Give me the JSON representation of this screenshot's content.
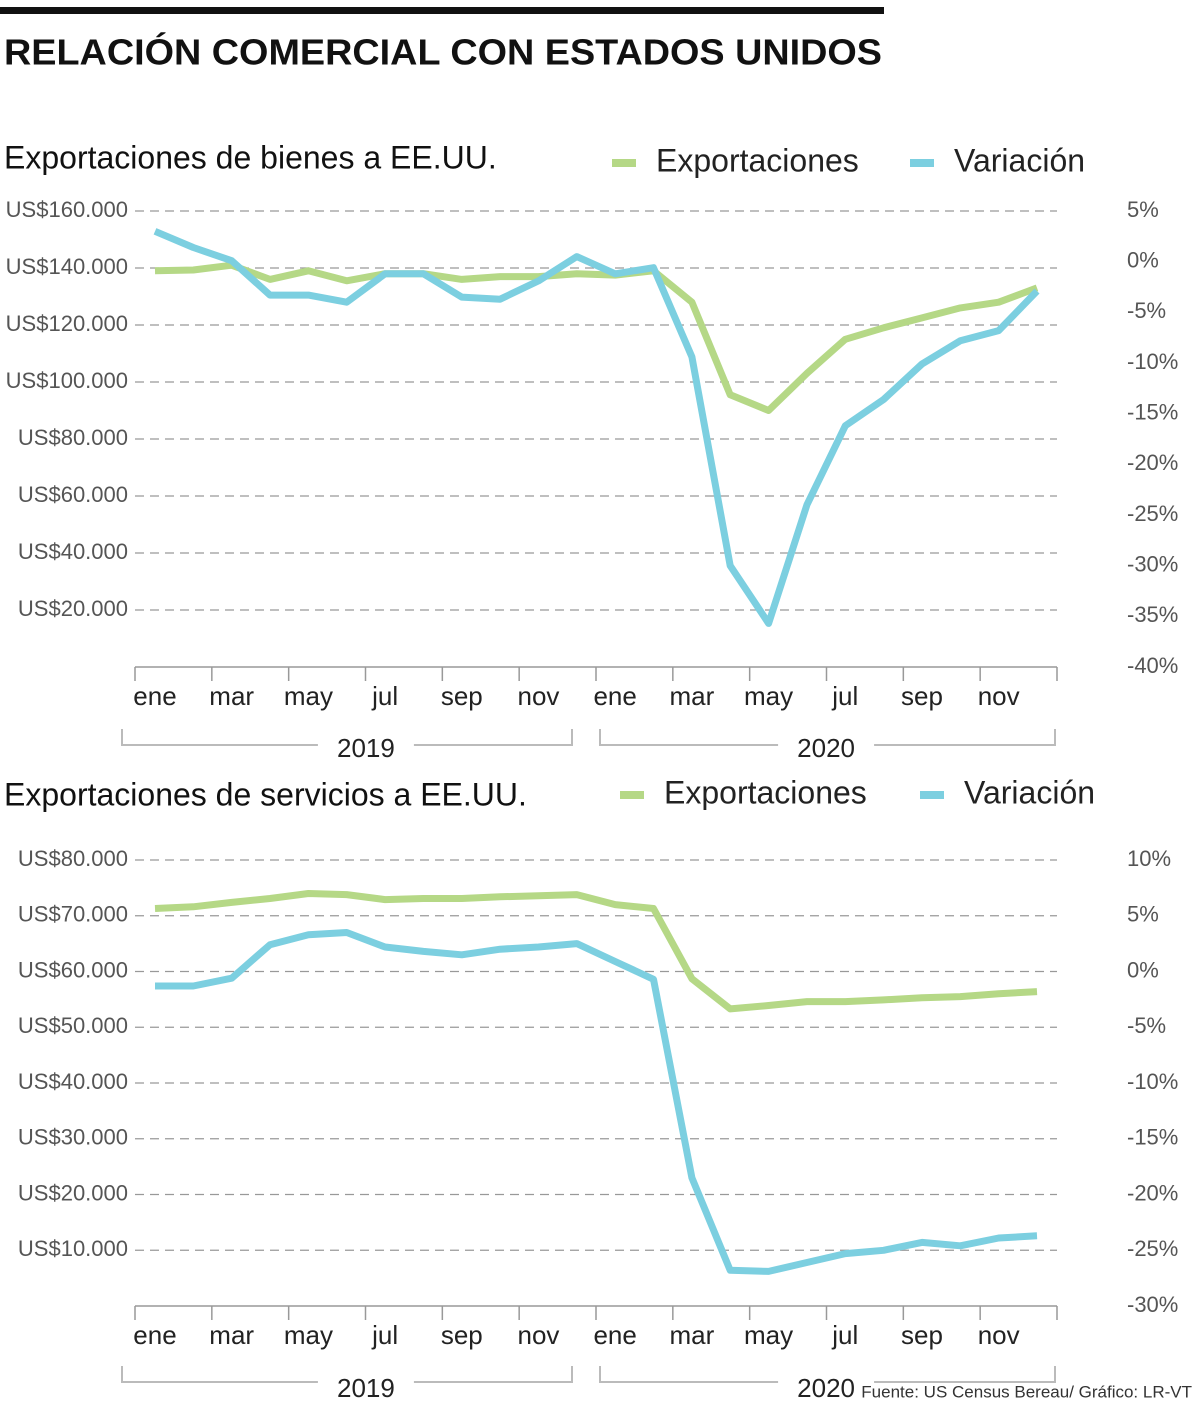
{
  "title": "RELACIÓN COMERCIAL CON ESTADOS UNIDOS",
  "source": "Fuente: US Census Bereau/ Gráfico: LR-VT",
  "chart_data": [
    {
      "type": "line",
      "title": "Exportaciones de bienes a EE.UU.",
      "categories": [
        "ene",
        null,
        "mar",
        null,
        "may",
        null,
        "jul",
        null,
        "sep",
        null,
        "nov",
        null,
        "ene",
        null,
        "mar",
        null,
        "may",
        null,
        "jul",
        null,
        "sep",
        null,
        "nov",
        null
      ],
      "groups": [
        "2019",
        "2020"
      ],
      "series": [
        {
          "name": "Exportaciones",
          "color": "#b5d886",
          "values": [
            139000,
            139300,
            141000,
            136000,
            139000,
            135500,
            138000,
            138000,
            136000,
            137000,
            137000,
            138000,
            137500,
            139000,
            128000,
            95500,
            90000,
            103000,
            115000,
            119000,
            122500,
            126000,
            128000,
            133000
          ]
        },
        {
          "name": "Variación",
          "color": "#7ccfe0",
          "axis": "y2",
          "values": [
            3.0,
            1.4,
            0.1,
            -3.3,
            -3.3,
            -4.0,
            -1.2,
            -1.2,
            -3.5,
            -3.7,
            -1.9,
            0.5,
            -1.2,
            -0.6,
            -9.4,
            -30.0,
            -35.7,
            -24.0,
            -16.2,
            -13.6,
            -10.1,
            -7.8,
            -6.8,
            -2.9
          ]
        }
      ],
      "ylim": [
        0,
        160000
      ],
      "yticks": [
        {
          "value": 20000,
          "label": "US$20.000"
        },
        {
          "value": 40000,
          "label": "US$40.000"
        },
        {
          "value": 60000,
          "label": "US$60.000"
        },
        {
          "value": 80000,
          "label": "US$80.000"
        },
        {
          "value": 100000,
          "label": "US$100.000"
        },
        {
          "value": 120000,
          "label": "US$120.000"
        },
        {
          "value": 140000,
          "label": "US$140.000"
        },
        {
          "value": 160000,
          "label": "US$160.000"
        }
      ],
      "y2lim": [
        -40,
        5
      ],
      "y2ticks": [
        {
          "value": 5,
          "label": "5%"
        },
        {
          "value": 0,
          "label": "0%"
        },
        {
          "value": -5,
          "label": "-5%"
        },
        {
          "value": -10,
          "label": "-10%"
        },
        {
          "value": -15,
          "label": "-15%"
        },
        {
          "value": -20,
          "label": "-20%"
        },
        {
          "value": -25,
          "label": "-25%"
        },
        {
          "value": -30,
          "label": "-30%"
        },
        {
          "value": -35,
          "label": "-35%"
        },
        {
          "value": -40,
          "label": "-40%"
        }
      ],
      "grid": true
    },
    {
      "type": "line",
      "title": "Exportaciones de servicios a EE.UU.",
      "categories": [
        "ene",
        null,
        "mar",
        null,
        "may",
        null,
        "jul",
        null,
        "sep",
        null,
        "nov",
        null,
        "ene",
        null,
        "mar",
        null,
        "may",
        null,
        "jul",
        null,
        "sep",
        null,
        "nov",
        null
      ],
      "groups": [
        "2019",
        "2020"
      ],
      "series": [
        {
          "name": "Exportaciones",
          "color": "#b5d886",
          "values": [
            71300,
            71600,
            72400,
            73100,
            74000,
            73800,
            72900,
            73100,
            73100,
            73400,
            73600,
            73800,
            72000,
            71300,
            58700,
            53300,
            53900,
            54600,
            54600,
            54900,
            55300,
            55500,
            56000,
            56400
          ]
        },
        {
          "name": "Variación",
          "color": "#7ccfe0",
          "axis": "y2",
          "values": [
            -1.3,
            -1.3,
            -0.6,
            2.4,
            3.3,
            3.5,
            2.2,
            1.8,
            1.5,
            2.0,
            2.2,
            2.5,
            0.9,
            -0.7,
            -18.5,
            -26.8,
            -26.9,
            -26.1,
            -25.3,
            -25.0,
            -24.3,
            -24.6,
            -23.9,
            -23.7
          ]
        }
      ],
      "ylim": [
        0,
        80000
      ],
      "yticks": [
        {
          "value": 10000,
          "label": "US$10.000"
        },
        {
          "value": 20000,
          "label": "US$20.000"
        },
        {
          "value": 30000,
          "label": "US$30.000"
        },
        {
          "value": 40000,
          "label": "US$40.000"
        },
        {
          "value": 50000,
          "label": "US$50.000"
        },
        {
          "value": 60000,
          "label": "US$60.000"
        },
        {
          "value": 70000,
          "label": "US$70.000"
        },
        {
          "value": 80000,
          "label": "US$80.000"
        }
      ],
      "y2lim": [
        -30,
        10
      ],
      "y2ticks": [
        {
          "value": 10,
          "label": "10%"
        },
        {
          "value": 5,
          "label": "5%"
        },
        {
          "value": 0,
          "label": "0%"
        },
        {
          "value": -5,
          "label": "-5%"
        },
        {
          "value": -10,
          "label": "-10%"
        },
        {
          "value": -15,
          "label": "-15%"
        },
        {
          "value": -20,
          "label": "-20%"
        },
        {
          "value": -25,
          "label": "-25%"
        },
        {
          "value": -30,
          "label": "-30%"
        }
      ],
      "grid": true
    }
  ]
}
